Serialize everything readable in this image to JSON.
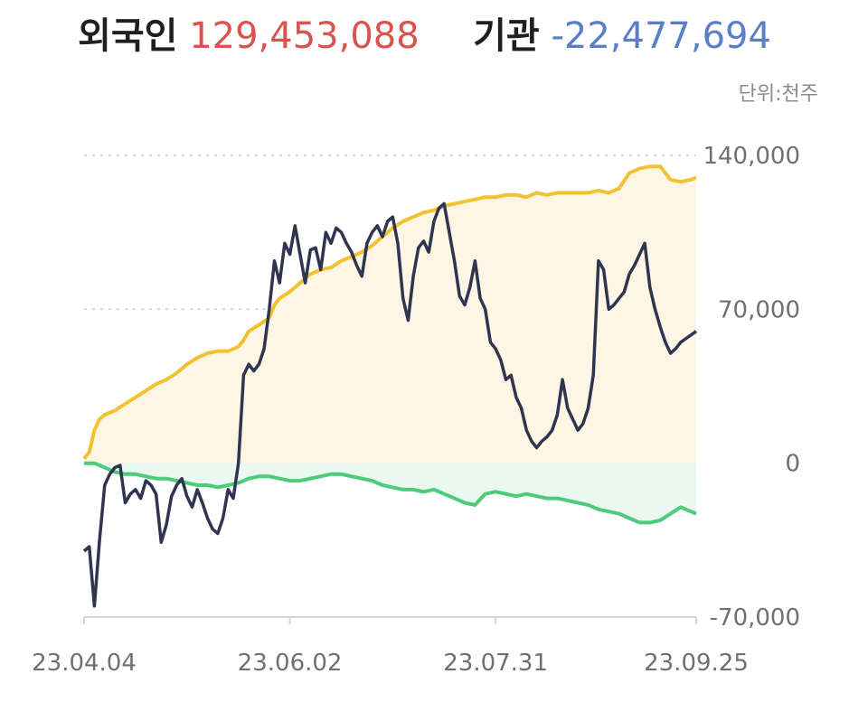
{
  "header": {
    "foreign_label": "외국인",
    "foreign_value": "129,453,088",
    "inst_label": "기관",
    "inst_value": "-22,477,694",
    "unit": "단위:천주"
  },
  "colors": {
    "foreign_value": "#d9534f",
    "inst_value": "#5b7fc7",
    "yellow_line": "#f2c233",
    "yellow_fill": "#fdf6e4",
    "green_line": "#4ccb7a",
    "green_fill": "#eaf8ef",
    "dark_line": "#2f3550"
  },
  "chart_data": {
    "type": "line",
    "x_tick_labels": [
      "23.04.04",
      "23.06.02",
      "23.07.31",
      "23.09.25"
    ],
    "y_tick_labels": [
      "140,000",
      "70,000",
      "0",
      "-70,000"
    ],
    "y_ticks": [
      140000,
      70000,
      0,
      -70000
    ],
    "ylim": [
      -70000,
      140000
    ],
    "x_count": 120,
    "x_tick_index": [
      0,
      40,
      80,
      119
    ],
    "grid": "dashed",
    "series": [
      {
        "role": "yellow",
        "values": [
          [
            0,
            2000
          ],
          [
            1,
            5000
          ],
          [
            2,
            15000
          ],
          [
            3,
            20000
          ],
          [
            4,
            22000
          ],
          [
            6,
            24000
          ],
          [
            8,
            27000
          ],
          [
            10,
            30000
          ],
          [
            12,
            33000
          ],
          [
            14,
            36000
          ],
          [
            16,
            38000
          ],
          [
            18,
            41000
          ],
          [
            20,
            45000
          ],
          [
            22,
            48000
          ],
          [
            24,
            50000
          ],
          [
            26,
            51000
          ],
          [
            28,
            51000
          ],
          [
            30,
            53000
          ],
          [
            31,
            56000
          ],
          [
            32,
            60000
          ],
          [
            34,
            63000
          ],
          [
            36,
            66000
          ],
          [
            37,
            72000
          ],
          [
            38,
            75000
          ],
          [
            40,
            78000
          ],
          [
            42,
            82000
          ],
          [
            44,
            86000
          ],
          [
            46,
            88000
          ],
          [
            48,
            89000
          ],
          [
            50,
            92000
          ],
          [
            52,
            94000
          ],
          [
            54,
            96000
          ],
          [
            56,
            99000
          ],
          [
            58,
            103000
          ],
          [
            60,
            107000
          ],
          [
            62,
            110000
          ],
          [
            64,
            112000
          ],
          [
            66,
            114000
          ],
          [
            68,
            115000
          ],
          [
            70,
            117000
          ],
          [
            72,
            118000
          ],
          [
            74,
            119000
          ],
          [
            76,
            120000
          ],
          [
            78,
            121000
          ],
          [
            80,
            121000
          ],
          [
            82,
            122000
          ],
          [
            84,
            122000
          ],
          [
            86,
            121000
          ],
          [
            88,
            123000
          ],
          [
            90,
            122000
          ],
          [
            92,
            123000
          ],
          [
            94,
            123000
          ],
          [
            96,
            123000
          ],
          [
            98,
            123000
          ],
          [
            100,
            124000
          ],
          [
            102,
            123000
          ],
          [
            104,
            125000
          ],
          [
            106,
            132000
          ],
          [
            108,
            134000
          ],
          [
            110,
            135000
          ],
          [
            112,
            135000
          ],
          [
            113,
            132000
          ],
          [
            114,
            129000
          ],
          [
            116,
            128000
          ],
          [
            118,
            129000
          ],
          [
            119,
            130000
          ]
        ]
      },
      {
        "role": "green",
        "values": [
          [
            0,
            0
          ],
          [
            2,
            0
          ],
          [
            4,
            -2000
          ],
          [
            6,
            -4000
          ],
          [
            8,
            -5000
          ],
          [
            10,
            -5000
          ],
          [
            12,
            -6000
          ],
          [
            14,
            -7000
          ],
          [
            16,
            -7000
          ],
          [
            18,
            -8000
          ],
          [
            20,
            -9000
          ],
          [
            22,
            -10000
          ],
          [
            24,
            -10000
          ],
          [
            26,
            -11000
          ],
          [
            28,
            -10000
          ],
          [
            30,
            -9000
          ],
          [
            32,
            -7000
          ],
          [
            34,
            -6000
          ],
          [
            36,
            -6000
          ],
          [
            38,
            -7000
          ],
          [
            40,
            -8000
          ],
          [
            42,
            -8000
          ],
          [
            44,
            -7000
          ],
          [
            46,
            -6000
          ],
          [
            48,
            -5000
          ],
          [
            50,
            -5000
          ],
          [
            52,
            -6000
          ],
          [
            54,
            -7000
          ],
          [
            56,
            -8000
          ],
          [
            58,
            -10000
          ],
          [
            60,
            -11000
          ],
          [
            62,
            -12000
          ],
          [
            64,
            -12000
          ],
          [
            66,
            -13000
          ],
          [
            68,
            -12000
          ],
          [
            70,
            -14000
          ],
          [
            72,
            -16000
          ],
          [
            74,
            -18000
          ],
          [
            76,
            -19000
          ],
          [
            78,
            -14000
          ],
          [
            80,
            -13000
          ],
          [
            82,
            -14000
          ],
          [
            84,
            -15000
          ],
          [
            86,
            -14000
          ],
          [
            88,
            -15000
          ],
          [
            90,
            -16000
          ],
          [
            92,
            -16000
          ],
          [
            94,
            -17000
          ],
          [
            96,
            -18000
          ],
          [
            98,
            -19000
          ],
          [
            100,
            -21000
          ],
          [
            102,
            -22000
          ],
          [
            104,
            -23000
          ],
          [
            106,
            -25000
          ],
          [
            108,
            -27000
          ],
          [
            110,
            -27000
          ],
          [
            112,
            -26000
          ],
          [
            114,
            -23000
          ],
          [
            116,
            -20000
          ],
          [
            118,
            -22000
          ],
          [
            119,
            -23000
          ]
        ]
      },
      {
        "role": "dark",
        "values": [
          [
            0,
            -40000
          ],
          [
            1,
            -38000
          ],
          [
            2,
            -65000
          ],
          [
            3,
            -35000
          ],
          [
            4,
            -10000
          ],
          [
            5,
            -5000
          ],
          [
            6,
            -2000
          ],
          [
            7,
            -1000
          ],
          [
            8,
            -18000
          ],
          [
            9,
            -14000
          ],
          [
            10,
            -12000
          ],
          [
            11,
            -16000
          ],
          [
            12,
            -8000
          ],
          [
            13,
            -10000
          ],
          [
            14,
            -14000
          ],
          [
            15,
            -36000
          ],
          [
            16,
            -28000
          ],
          [
            17,
            -15000
          ],
          [
            18,
            -10000
          ],
          [
            19,
            -7000
          ],
          [
            20,
            -15000
          ],
          [
            21,
            -20000
          ],
          [
            22,
            -12000
          ],
          [
            23,
            -18000
          ],
          [
            24,
            -25000
          ],
          [
            25,
            -30000
          ],
          [
            26,
            -32000
          ],
          [
            27,
            -25000
          ],
          [
            28,
            -12000
          ],
          [
            29,
            -16000
          ],
          [
            30,
            0
          ],
          [
            31,
            40000
          ],
          [
            32,
            45000
          ],
          [
            33,
            42000
          ],
          [
            34,
            45000
          ],
          [
            35,
            52000
          ],
          [
            36,
            70000
          ],
          [
            37,
            92000
          ],
          [
            38,
            82000
          ],
          [
            39,
            100000
          ],
          [
            40,
            95000
          ],
          [
            41,
            108000
          ],
          [
            42,
            95000
          ],
          [
            43,
            82000
          ],
          [
            44,
            97000
          ],
          [
            45,
            98000
          ],
          [
            46,
            88000
          ],
          [
            47,
            105000
          ],
          [
            48,
            100000
          ],
          [
            49,
            107000
          ],
          [
            50,
            105000
          ],
          [
            51,
            100000
          ],
          [
            52,
            96000
          ],
          [
            53,
            90000
          ],
          [
            54,
            85000
          ],
          [
            55,
            100000
          ],
          [
            56,
            105000
          ],
          [
            57,
            108000
          ],
          [
            58,
            103000
          ],
          [
            59,
            110000
          ],
          [
            60,
            112000
          ],
          [
            61,
            100000
          ],
          [
            62,
            75000
          ],
          [
            63,
            65000
          ],
          [
            64,
            85000
          ],
          [
            65,
            98000
          ],
          [
            66,
            101000
          ],
          [
            67,
            96000
          ],
          [
            68,
            110000
          ],
          [
            69,
            116000
          ],
          [
            70,
            118000
          ],
          [
            71,
            105000
          ],
          [
            72,
            92000
          ],
          [
            73,
            76000
          ],
          [
            74,
            72000
          ],
          [
            75,
            80000
          ],
          [
            76,
            92000
          ],
          [
            77,
            75000
          ],
          [
            78,
            70000
          ],
          [
            79,
            55000
          ],
          [
            80,
            52000
          ],
          [
            81,
            47000
          ],
          [
            82,
            38000
          ],
          [
            83,
            40000
          ],
          [
            84,
            30000
          ],
          [
            85,
            25000
          ],
          [
            86,
            15000
          ],
          [
            87,
            10000
          ],
          [
            88,
            7000
          ],
          [
            89,
            10000
          ],
          [
            90,
            12000
          ],
          [
            91,
            15000
          ],
          [
            92,
            22000
          ],
          [
            93,
            38000
          ],
          [
            94,
            25000
          ],
          [
            95,
            20000
          ],
          [
            96,
            15000
          ],
          [
            97,
            18000
          ],
          [
            98,
            25000
          ],
          [
            99,
            40000
          ],
          [
            100,
            92000
          ],
          [
            101,
            88000
          ],
          [
            102,
            70000
          ],
          [
            103,
            72000
          ],
          [
            104,
            75000
          ],
          [
            105,
            78000
          ],
          [
            106,
            86000
          ],
          [
            107,
            90000
          ],
          [
            108,
            95000
          ],
          [
            109,
            100000
          ],
          [
            110,
            80000
          ],
          [
            111,
            70000
          ],
          [
            112,
            62000
          ],
          [
            113,
            55000
          ],
          [
            114,
            50000
          ],
          [
            115,
            52000
          ],
          [
            116,
            55000
          ],
          [
            119,
            60000
          ]
        ]
      }
    ]
  }
}
